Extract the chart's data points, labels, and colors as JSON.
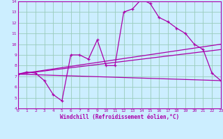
{
  "xlabel": "Windchill (Refroidissement éolien,°C)",
  "xlim": [
    0,
    23
  ],
  "ylim": [
    4,
    14
  ],
  "xticks": [
    0,
    1,
    2,
    3,
    4,
    5,
    6,
    7,
    8,
    9,
    10,
    11,
    12,
    13,
    14,
    15,
    16,
    17,
    18,
    19,
    20,
    21,
    22,
    23
  ],
  "yticks": [
    4,
    5,
    6,
    7,
    8,
    9,
    10,
    11,
    12,
    13,
    14
  ],
  "background_color": "#cceeff",
  "line_color": "#aa00aa",
  "grid_color": "#99ccbb",
  "line1_x": [
    0,
    1,
    2,
    3,
    4,
    5,
    6,
    7,
    8,
    9,
    10,
    11,
    12,
    13,
    14,
    15,
    16,
    17,
    18,
    19,
    20,
    21,
    22,
    23
  ],
  "line1_y": [
    7.2,
    7.4,
    7.3,
    6.6,
    5.3,
    4.7,
    9.0,
    9.0,
    8.6,
    10.4,
    8.0,
    8.0,
    13.0,
    13.3,
    14.2,
    13.8,
    12.5,
    12.1,
    11.5,
    11.0,
    10.0,
    9.5,
    7.3,
    6.6
  ],
  "line2_x": [
    0,
    23
  ],
  "line2_y": [
    7.2,
    10.0
  ],
  "line3_x": [
    0,
    23
  ],
  "line3_y": [
    7.2,
    9.5
  ],
  "line4_x": [
    0,
    23
  ],
  "line4_y": [
    7.2,
    6.6
  ],
  "marker": "+"
}
